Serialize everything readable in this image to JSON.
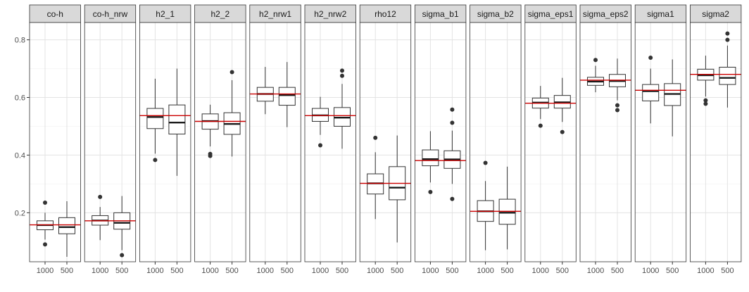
{
  "chart_data": {
    "type": "boxplot-facets",
    "y_ticks": [
      0.2,
      0.4,
      0.6,
      0.8
    ],
    "y_tick_labels": [
      "0.2",
      "0.4",
      "0.6",
      "0.8"
    ],
    "ylim": [
      0.03,
      0.86
    ],
    "x_categories": [
      "1000",
      "500"
    ],
    "reference_line_color": "#cc0000",
    "box_stroke_color": "#333333",
    "strip_fill": "#d9d9d9",
    "panels": [
      {
        "label": "co-h",
        "ref": 0.158,
        "boxes": [
          {
            "category": "1000",
            "lower_whisker": 0.107,
            "q1": 0.141,
            "median": 0.157,
            "q3": 0.172,
            "upper_whisker": 0.2,
            "outliers": [
              0.235,
              0.09
            ]
          },
          {
            "category": "500",
            "lower_whisker": 0.047,
            "q1": 0.127,
            "median": 0.15,
            "q3": 0.183,
            "upper_whisker": 0.24,
            "outliers": []
          }
        ]
      },
      {
        "label": "co-h_nrw",
        "ref": 0.172,
        "boxes": [
          {
            "category": "1000",
            "lower_whisker": 0.105,
            "q1": 0.157,
            "median": 0.173,
            "q3": 0.19,
            "upper_whisker": 0.22,
            "outliers": [
              0.255
            ]
          },
          {
            "category": "500",
            "lower_whisker": 0.07,
            "q1": 0.143,
            "median": 0.165,
            "q3": 0.2,
            "upper_whisker": 0.258,
            "outliers": [
              0.053
            ]
          }
        ]
      },
      {
        "label": "h2_1",
        "ref": 0.537,
        "boxes": [
          {
            "category": "1000",
            "lower_whisker": 0.405,
            "q1": 0.492,
            "median": 0.532,
            "q3": 0.562,
            "upper_whisker": 0.665,
            "outliers": [
              0.383
            ]
          },
          {
            "category": "500",
            "lower_whisker": 0.328,
            "q1": 0.473,
            "median": 0.513,
            "q3": 0.574,
            "upper_whisker": 0.7,
            "outliers": []
          }
        ]
      },
      {
        "label": "h2_2",
        "ref": 0.517,
        "boxes": [
          {
            "category": "1000",
            "lower_whisker": 0.43,
            "q1": 0.49,
            "median": 0.518,
            "q3": 0.543,
            "upper_whisker": 0.575,
            "outliers": [
              0.404,
              0.397
            ]
          },
          {
            "category": "500",
            "lower_whisker": 0.395,
            "q1": 0.472,
            "median": 0.508,
            "q3": 0.547,
            "upper_whisker": 0.66,
            "outliers": [
              0.688
            ]
          }
        ]
      },
      {
        "label": "h2_nrw1",
        "ref": 0.612,
        "boxes": [
          {
            "category": "1000",
            "lower_whisker": 0.542,
            "q1": 0.587,
            "median": 0.612,
            "q3": 0.635,
            "upper_whisker": 0.706,
            "outliers": []
          },
          {
            "category": "500",
            "lower_whisker": 0.497,
            "q1": 0.573,
            "median": 0.608,
            "q3": 0.635,
            "upper_whisker": 0.723,
            "outliers": []
          }
        ]
      },
      {
        "label": "h2_nrw2",
        "ref": 0.537,
        "boxes": [
          {
            "category": "1000",
            "lower_whisker": 0.47,
            "q1": 0.517,
            "median": 0.538,
            "q3": 0.562,
            "upper_whisker": 0.602,
            "outliers": [
              0.434
            ]
          },
          {
            "category": "500",
            "lower_whisker": 0.422,
            "q1": 0.5,
            "median": 0.53,
            "q3": 0.565,
            "upper_whisker": 0.647,
            "outliers": [
              0.693,
              0.675
            ]
          }
        ]
      },
      {
        "label": "rho12",
        "ref": 0.302,
        "boxes": [
          {
            "category": "1000",
            "lower_whisker": 0.178,
            "q1": 0.265,
            "median": 0.302,
            "q3": 0.335,
            "upper_whisker": 0.41,
            "outliers": [
              0.46
            ]
          },
          {
            "category": "500",
            "lower_whisker": 0.097,
            "q1": 0.245,
            "median": 0.287,
            "q3": 0.36,
            "upper_whisker": 0.468,
            "outliers": []
          }
        ]
      },
      {
        "label": "sigma_b1",
        "ref": 0.381,
        "boxes": [
          {
            "category": "1000",
            "lower_whisker": 0.305,
            "q1": 0.363,
            "median": 0.386,
            "q3": 0.418,
            "upper_whisker": 0.483,
            "outliers": [
              0.272
            ]
          },
          {
            "category": "500",
            "lower_whisker": 0.3,
            "q1": 0.354,
            "median": 0.385,
            "q3": 0.415,
            "upper_whisker": 0.485,
            "outliers": [
              0.558,
              0.512,
              0.248
            ]
          }
        ]
      },
      {
        "label": "sigma_b2",
        "ref": 0.205,
        "boxes": [
          {
            "category": "1000",
            "lower_whisker": 0.07,
            "q1": 0.17,
            "median": 0.205,
            "q3": 0.242,
            "upper_whisker": 0.31,
            "outliers": [
              0.373
            ]
          },
          {
            "category": "500",
            "lower_whisker": 0.073,
            "q1": 0.16,
            "median": 0.2,
            "q3": 0.247,
            "upper_whisker": 0.36,
            "outliers": []
          }
        ]
      },
      {
        "label": "sigma_eps1",
        "ref": 0.58,
        "boxes": [
          {
            "category": "1000",
            "lower_whisker": 0.525,
            "q1": 0.563,
            "median": 0.582,
            "q3": 0.598,
            "upper_whisker": 0.64,
            "outliers": [
              0.502
            ]
          },
          {
            "category": "500",
            "lower_whisker": 0.515,
            "q1": 0.563,
            "median": 0.583,
            "q3": 0.607,
            "upper_whisker": 0.668,
            "outliers": [
              0.48
            ]
          }
        ]
      },
      {
        "label": "sigma_eps2",
        "ref": 0.66,
        "boxes": [
          {
            "category": "1000",
            "lower_whisker": 0.618,
            "q1": 0.642,
            "median": 0.655,
            "q3": 0.67,
            "upper_whisker": 0.71,
            "outliers": [
              0.73
            ]
          },
          {
            "category": "500",
            "lower_whisker": 0.59,
            "q1": 0.637,
            "median": 0.657,
            "q3": 0.68,
            "upper_whisker": 0.735,
            "outliers": [
              0.573,
              0.556
            ]
          }
        ]
      },
      {
        "label": "sigma1",
        "ref": 0.625,
        "boxes": [
          {
            "category": "1000",
            "lower_whisker": 0.51,
            "q1": 0.588,
            "median": 0.622,
            "q3": 0.645,
            "upper_whisker": 0.7,
            "outliers": [
              0.738
            ]
          },
          {
            "category": "500",
            "lower_whisker": 0.465,
            "q1": 0.572,
            "median": 0.612,
            "q3": 0.648,
            "upper_whisker": 0.732,
            "outliers": []
          }
        ]
      },
      {
        "label": "sigma2",
        "ref": 0.68,
        "boxes": [
          {
            "category": "1000",
            "lower_whisker": 0.603,
            "q1": 0.66,
            "median": 0.677,
            "q3": 0.698,
            "upper_whisker": 0.745,
            "outliers": [
              0.59,
              0.578
            ]
          },
          {
            "category": "500",
            "lower_whisker": 0.565,
            "q1": 0.645,
            "median": 0.668,
            "q3": 0.705,
            "upper_whisker": 0.78,
            "outliers": [
              0.822,
              0.8
            ]
          }
        ]
      }
    ]
  }
}
